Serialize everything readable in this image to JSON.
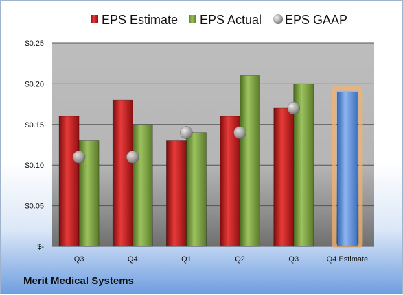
{
  "company": "Merit Medical Systems",
  "chart_data": {
    "type": "bar",
    "categories": [
      "Q3",
      "Q4",
      "Q1",
      "Q2",
      "Q3",
      "Q4 Estimate"
    ],
    "series": [
      {
        "name": "EPS Estimate",
        "values": [
          0.16,
          0.18,
          0.13,
          0.16,
          0.17,
          null
        ],
        "color": "#cc1f1f"
      },
      {
        "name": "EPS Actual",
        "values": [
          0.13,
          0.15,
          0.14,
          0.21,
          0.2,
          null
        ],
        "color": "#7fa444"
      },
      {
        "name": "EPS GAAP",
        "values": [
          0.11,
          0.11,
          0.14,
          0.14,
          0.17,
          null
        ],
        "color": "#b8b8b8"
      }
    ],
    "estimate_bar": {
      "category": "Q4 Estimate",
      "value": 0.19,
      "color": "#5b8fd6",
      "highlight": "#f5b26b"
    },
    "yticks": [
      {
        "value": 0,
        "label": "$-"
      },
      {
        "value": 0.05,
        "label": "$0.05"
      },
      {
        "value": 0.1,
        "label": "$0.10"
      },
      {
        "value": 0.15,
        "label": "$0.15"
      },
      {
        "value": 0.2,
        "label": "$0.20"
      },
      {
        "value": 0.25,
        "label": "$0.25"
      }
    ],
    "ylim": [
      0,
      0.25
    ],
    "grid": true,
    "legend_position": "top"
  }
}
